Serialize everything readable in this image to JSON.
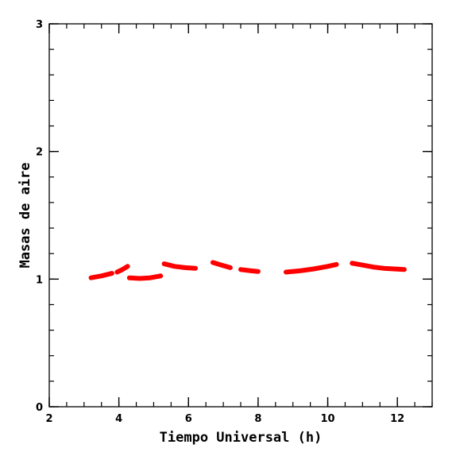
{
  "chart_data": {
    "type": "line",
    "title": "",
    "xlabel": "Tiempo Universal (h)",
    "ylabel": "Masas de aire",
    "xlim": [
      2,
      13
    ],
    "ylim": [
      0,
      3
    ],
    "x_ticks": [
      2,
      4,
      6,
      8,
      10,
      12
    ],
    "y_ticks": [
      0,
      1,
      2,
      3
    ],
    "x_tick_labels": [
      "2",
      "4",
      "6",
      "8",
      "10",
      "12"
    ],
    "y_tick_labels": [
      "0",
      "1",
      "2",
      "3"
    ],
    "grid": false,
    "legend": "none",
    "series_color": "#ff0000",
    "segments": [
      {
        "x": [
          3.2,
          3.5,
          3.8
        ],
        "y": [
          1.01,
          1.025,
          1.045
        ]
      },
      {
        "x": [
          3.95,
          4.1,
          4.25
        ],
        "y": [
          1.055,
          1.075,
          1.1
        ]
      },
      {
        "x": [
          4.3,
          4.6,
          4.9,
          5.2
        ],
        "y": [
          1.01,
          1.005,
          1.01,
          1.025
        ]
      },
      {
        "x": [
          5.3,
          5.6,
          5.9,
          6.2
        ],
        "y": [
          1.12,
          1.1,
          1.09,
          1.085
        ]
      },
      {
        "x": [
          6.7,
          6.95,
          7.2
        ],
        "y": [
          1.13,
          1.11,
          1.09
        ]
      },
      {
        "x": [
          7.5,
          7.8,
          8.0
        ],
        "y": [
          1.075,
          1.065,
          1.06
        ]
      },
      {
        "x": [
          8.8,
          9.2,
          9.6,
          10.0,
          10.25
        ],
        "y": [
          1.055,
          1.065,
          1.08,
          1.1,
          1.115
        ]
      },
      {
        "x": [
          10.7,
          11.0,
          11.3,
          11.6,
          11.9,
          12.2
        ],
        "y": [
          1.125,
          1.11,
          1.095,
          1.085,
          1.08,
          1.075
        ]
      }
    ]
  }
}
